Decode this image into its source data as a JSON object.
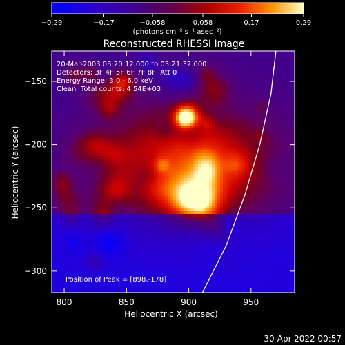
{
  "chart_data": {
    "type": "heatmap",
    "title": "Reconstructed RHESSI Image",
    "xlabel": "Heliocentric X (arcsec)",
    "ylabel": "Heliocentric Y (arcsec)",
    "xlim": [
      790,
      985
    ],
    "ylim": [
      -317,
      -126
    ],
    "x_ticks": [
      800,
      850,
      900,
      950
    ],
    "y_ticks": [
      -150,
      -200,
      -250,
      -300
    ],
    "x_tick_labels": [
      "800",
      "850",
      "900",
      "950"
    ],
    "y_tick_labels": [
      "−150",
      "−200",
      "−250",
      "−300"
    ],
    "colorbar": {
      "range": [
        -0.29,
        0.29
      ],
      "ticks": [
        -0.29,
        -0.17,
        -0.058,
        0.058,
        0.17,
        0.29
      ],
      "tick_labels": [
        "−0.29",
        "−0.17",
        "−0.058",
        "0.058",
        "0.17",
        "0.29"
      ],
      "unit_label": "(photons cm⁻² s⁻¹ asec⁻²)"
    },
    "annotations": {
      "time_range": "20-Mar-2003 03:20:12.000 to 03:21:32.000",
      "detectors": "Detectors: 3F 4F 5F 6F 7F 8F, Att 0",
      "energy_range": "Energy Range: 3.0 - 6.0 keV",
      "clean_label": "Clean",
      "total_counts": "Total counts: 4.54E+03",
      "peak_position": "Position of Peak = [898,-178]"
    },
    "peak": [
      898,
      -178
    ],
    "limb_curve": [
      [
        911,
        -317
      ],
      [
        930,
        -280
      ],
      [
        945,
        -240
      ],
      [
        957,
        -200
      ],
      [
        966,
        -160
      ],
      [
        970,
        -126
      ]
    ],
    "colors": {
      "background": "#000000",
      "limb": "#ffffff"
    }
  },
  "footer": {
    "timestamp": "30-Apr-2022 00:57"
  }
}
